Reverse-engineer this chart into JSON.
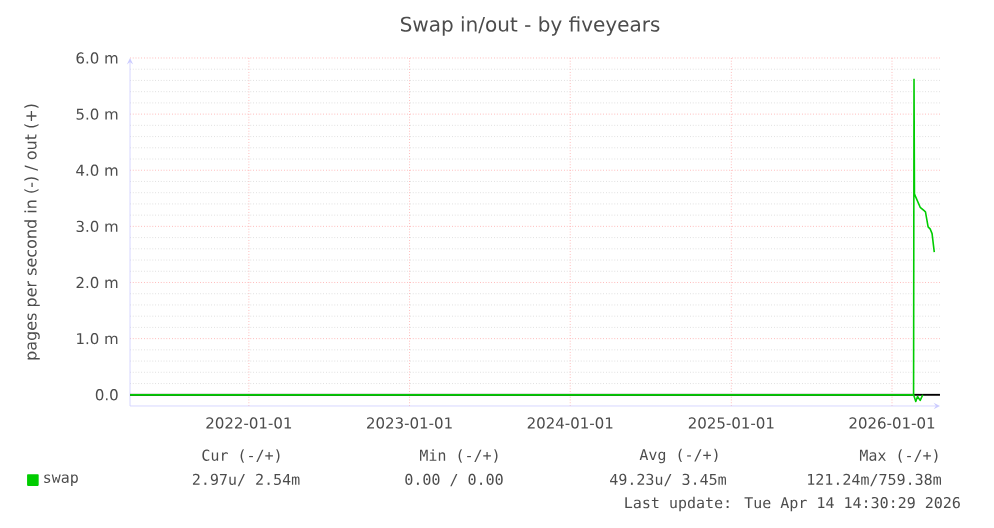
{
  "chart_data": {
    "type": "line",
    "title": "Swap in/out - by fiveyears",
    "ylabel": "pages per second in (-) / out (+)",
    "xlim": [
      "2021-04-06",
      "2026-04-20"
    ],
    "xticks": [
      "2022-01-01",
      "2023-01-01",
      "2024-01-01",
      "2025-01-01",
      "2026-01-01"
    ],
    "ylim": [
      -0.2,
      6.0
    ],
    "yticks": [
      {
        "value": 0,
        "label": "0.0"
      },
      {
        "value": 1,
        "label": "1.0 m"
      },
      {
        "value": 2,
        "label": "2.0 m"
      },
      {
        "value": 3,
        "label": "3.0 m"
      },
      {
        "value": 4,
        "label": "4.0 m"
      },
      {
        "value": 5,
        "label": "5.0 m"
      },
      {
        "value": 6,
        "label": "6.0 m"
      }
    ],
    "grid": true,
    "legend": "bottom left",
    "series": [
      {
        "name": "swap",
        "color": "#00cc00",
        "x": [
          "2021-04-06",
          "2026-02-19",
          "2026-02-20",
          "2026-02-21",
          "2026-02-24",
          "2026-03-06",
          "2026-03-15",
          "2026-03-18",
          "2026-03-24",
          "2026-03-29",
          "2026-04-02",
          "2026-04-07"
        ],
        "values": [
          0,
          0,
          5.62,
          3.58,
          3.52,
          3.34,
          3.28,
          3.26,
          2.99,
          2.95,
          2.87,
          2.54
        ]
      },
      {
        "color": "#00cc00",
        "x": [
          "2021-04-06",
          "2026-02-19",
          "2026-02-24",
          "2026-02-28",
          "2026-03-06",
          "2026-03-12"
        ],
        "values": [
          0,
          0,
          -0.12,
          -0.03,
          -0.1,
          0
        ]
      }
    ],
    "annotations": [
      "Cur (-/+)",
      "Min (-/+)",
      "Avg (-/+)",
      "Max (-/+)",
      "2.97u/ 2.54m",
      "0.00 / 0.00",
      "49.23u/ 3.45m",
      "121.24m/759.38m",
      "Last update: Tue Apr 14 14:30:29 2026"
    ]
  }
}
